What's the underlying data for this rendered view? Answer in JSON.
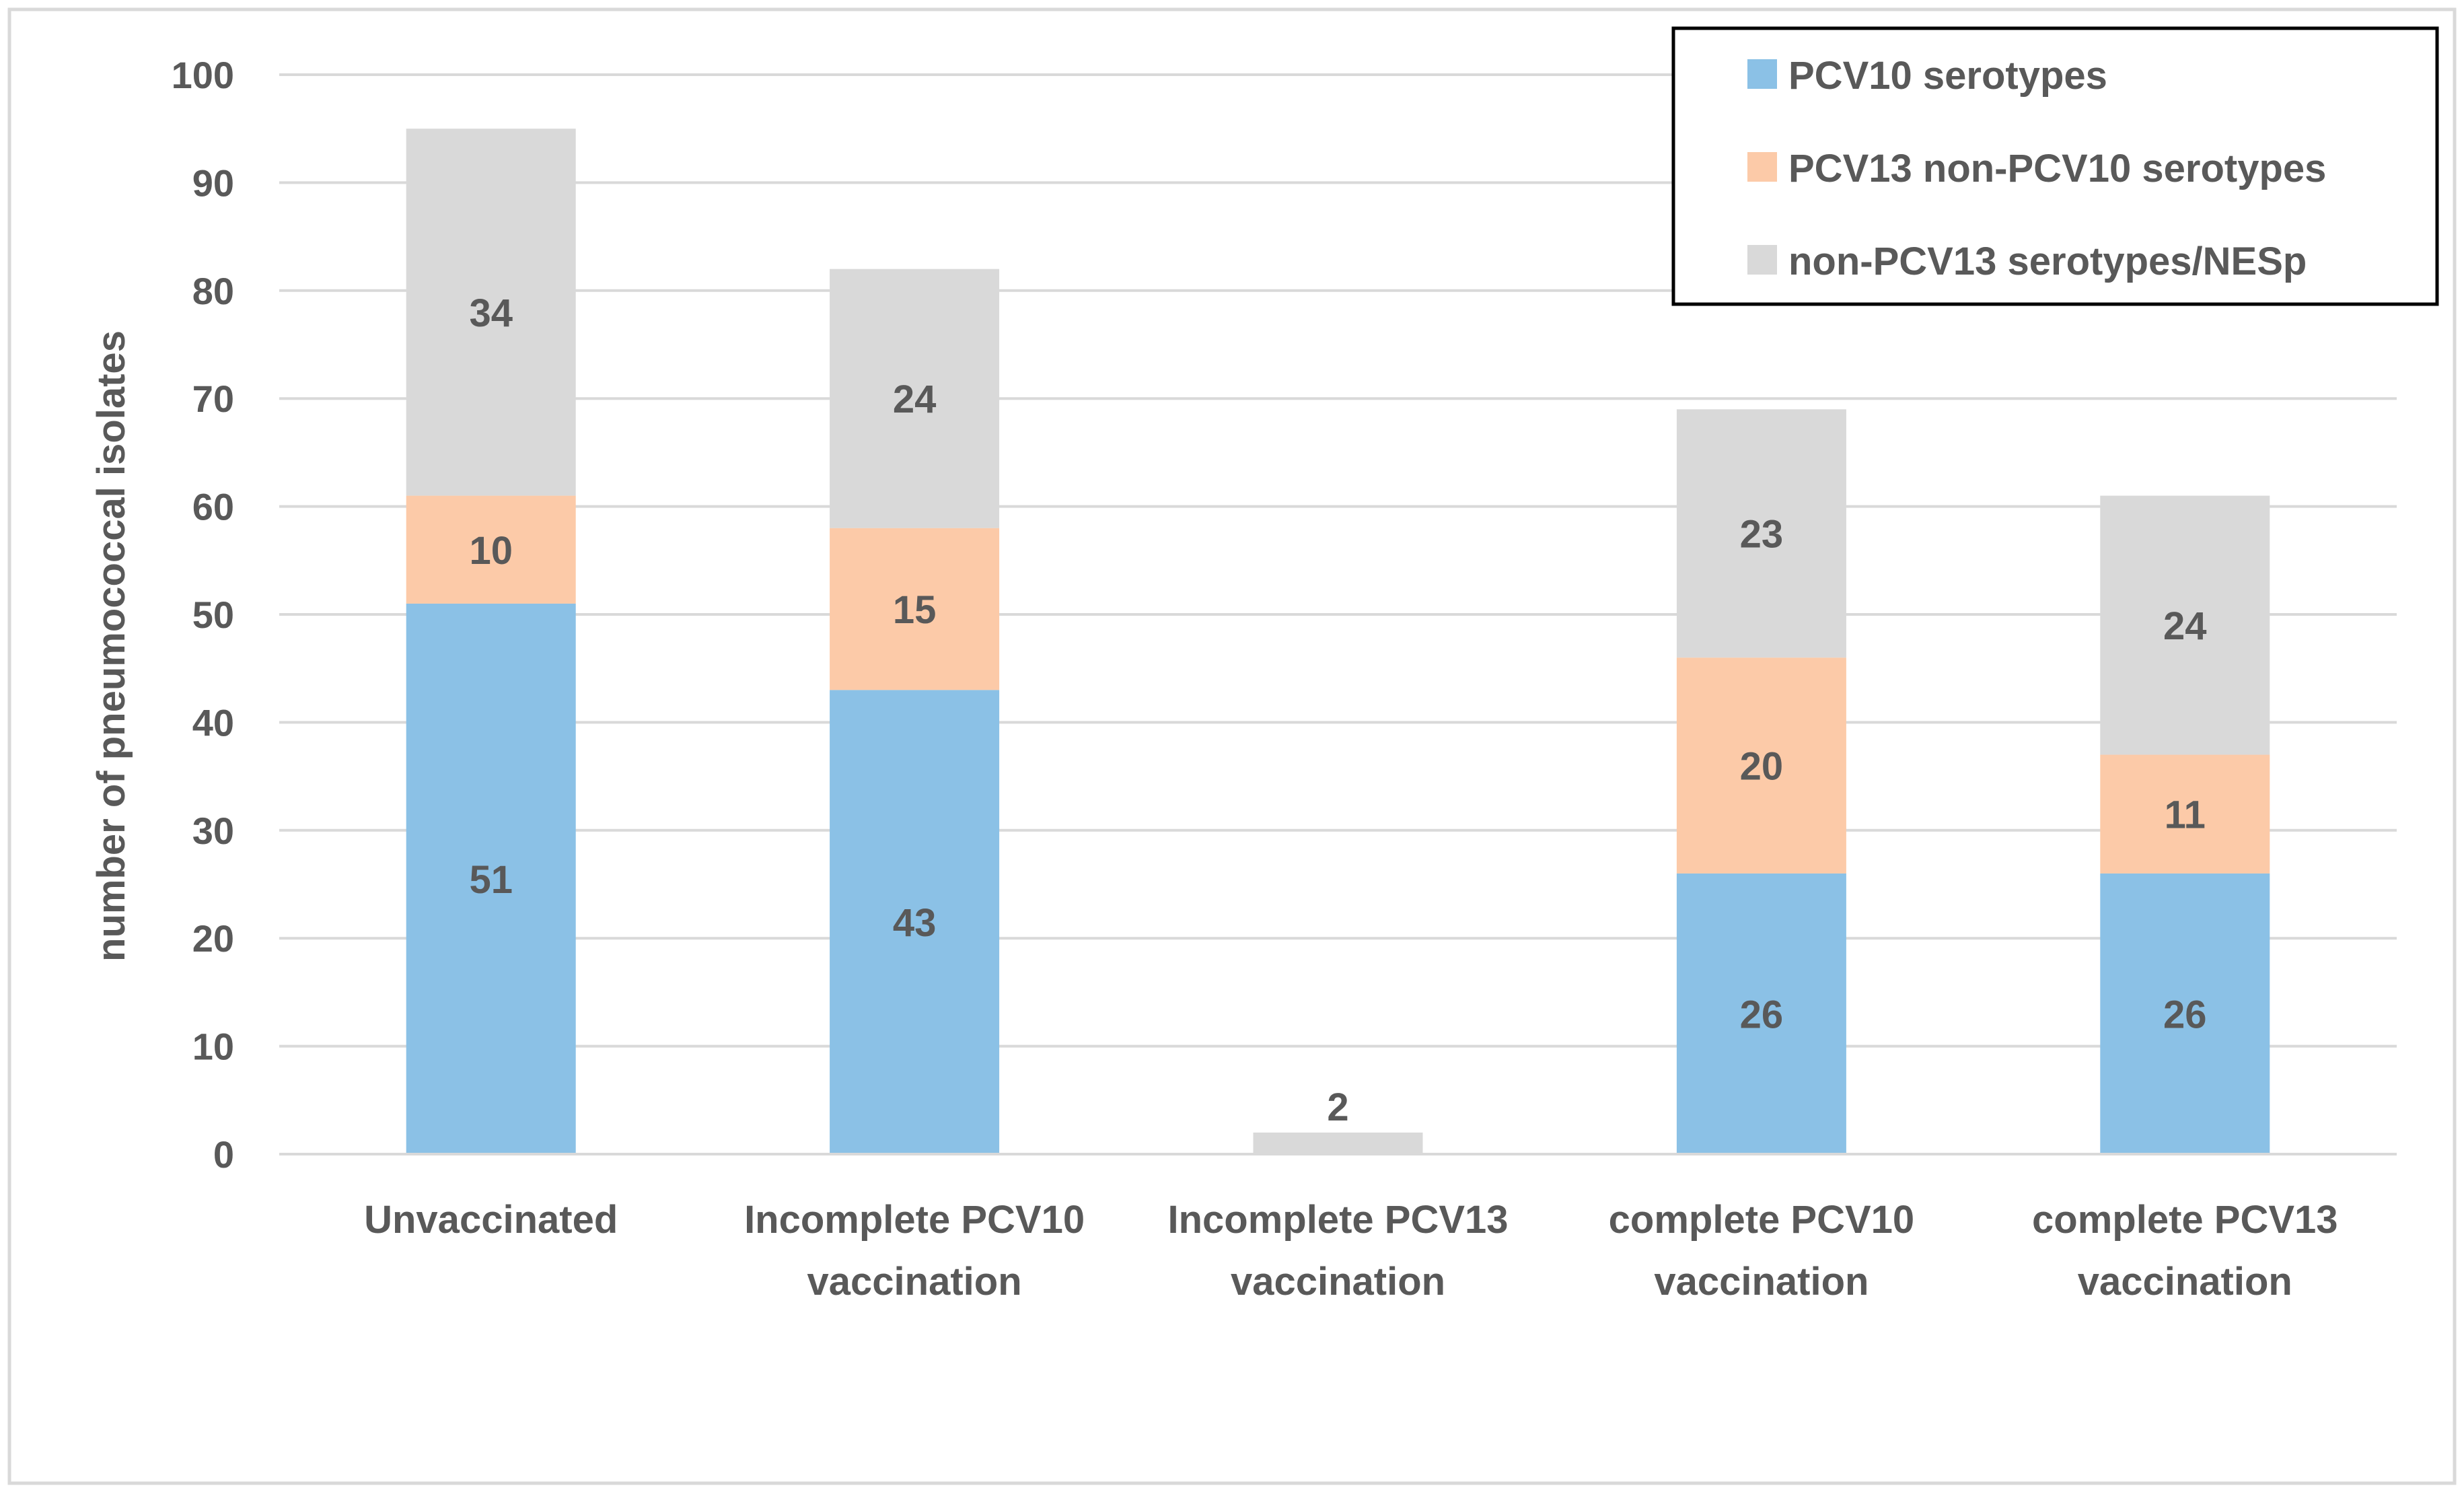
{
  "chart_data": {
    "type": "bar",
    "stacked": true,
    "title": "",
    "xlabel": "",
    "ylabel": "number of pneumococcal isolates",
    "ylim": [
      0,
      100
    ],
    "yticks": [
      0,
      10,
      20,
      30,
      40,
      50,
      60,
      70,
      80,
      90,
      100
    ],
    "grid": true,
    "legend_position": "top-right",
    "categories": [
      [
        "Unvaccinated"
      ],
      [
        "Incomplete PCV10",
        "vaccination"
      ],
      [
        "Incomplete PCV13",
        "vaccination"
      ],
      [
        "complete PCV10",
        "vaccination"
      ],
      [
        "complete PCV13",
        "vaccination"
      ]
    ],
    "series": [
      {
        "name": "PCV10 serotypes",
        "color": "#8BC1E6",
        "values": [
          51,
          43,
          0,
          26,
          26
        ]
      },
      {
        "name": "PCV13 non-PCV10 serotypes",
        "color": "#FCCAA8",
        "values": [
          10,
          15,
          0,
          20,
          11
        ]
      },
      {
        "name": "non-PCV13 serotypes/NESp",
        "color": "#D9D9D9",
        "values": [
          34,
          24,
          2,
          23,
          24
        ]
      }
    ],
    "colors": {
      "axis_text": "#595959",
      "grid": "#D9D9D9",
      "legend_border": "#000000",
      "frame": "#D9D9D9"
    }
  }
}
